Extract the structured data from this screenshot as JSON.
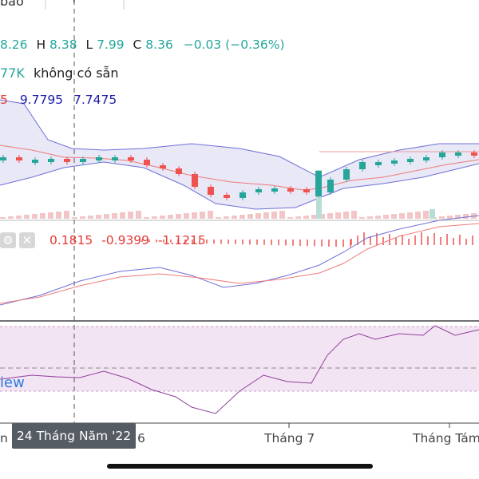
{
  "top_bar": {
    "tab_label": "bảo",
    "icon": "compare-add-icon"
  },
  "ohlc": {
    "open_partial": "8.26",
    "high_label": "H",
    "high": "8.38",
    "low_label": "L",
    "low": "7.99",
    "close_label": "C",
    "close": "8.36",
    "change": "−0.03 (−0.36%)"
  },
  "volume": {
    "value": "77K",
    "availability": "không có sẵn"
  },
  "bollinger": {
    "basis_partial": "5",
    "upper": "9.7795",
    "lower": "7.7475"
  },
  "macd": {
    "settings_icon": "gear-icon",
    "close_icon": "close-icon",
    "values": [
      "0.1815",
      "-0.9399",
      "-1.1215"
    ]
  },
  "rsi": {
    "view_text": "iew"
  },
  "crosshair": {
    "date_label": "24 Tháng Năm '22"
  },
  "time_axis": {
    "labels": [
      "n",
      "6",
      "Tháng 7",
      "Tháng Tám"
    ]
  },
  "colors": {
    "up": "#26a69a",
    "down": "#ef5350",
    "bb_fill": "#e8e8f6",
    "bb_band": "#6f6fd8",
    "basis": "#ef7a7a",
    "macd_line": "#6f6fd8",
    "signal_line": "#ef7a7a",
    "rsi_fill": "#f3e4f3"
  }
}
